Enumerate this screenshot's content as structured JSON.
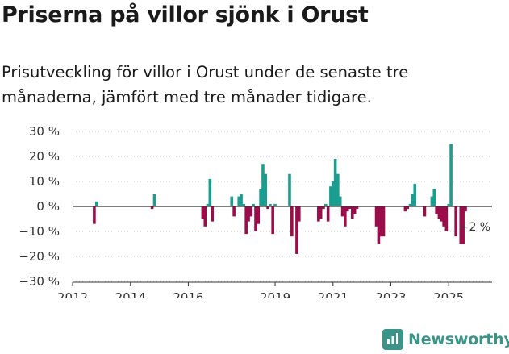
{
  "header": {
    "title": "Priserna på villor sjönk i Orust",
    "subtitle": "Prisutveckling för villor i Orust under de senaste tre månaderna, jämfört med tre månader tidigare."
  },
  "branding": {
    "name": "Newsworthy"
  },
  "colors": {
    "positive": "#1a9e8f",
    "negative": "#9b0d4a",
    "zero_line": "#333333",
    "grid": "#cccccc",
    "text": "#333333"
  },
  "chart_data": {
    "type": "bar",
    "title": "Priserna på villor sjönk i Orust",
    "subtitle": "Prisutveckling för villor i Orust under de senaste tre månaderna, jämfört med tre månader tidigare.",
    "xlabel": "",
    "ylabel": "",
    "x_unit": "decimal year",
    "xlim": [
      2012.0,
      2026.5
    ],
    "ylim": [
      -30,
      30
    ],
    "y_ticks": [
      30,
      20,
      10,
      0,
      -10,
      -20,
      -30
    ],
    "y_tick_labels": [
      "30 %",
      "20 %",
      "10 %",
      "0 %",
      "−10 %",
      "−20 %",
      "−30 %"
    ],
    "x_ticks": [
      2012,
      2014,
      2016,
      2019,
      2021,
      2023,
      2025
    ],
    "x_tick_labels": [
      "2012",
      "2014",
      "2016",
      "2019",
      "2021",
      "2023",
      "2025"
    ],
    "annotation": {
      "x": 2025.6,
      "value": -2,
      "label": "−2 %"
    },
    "x": [
      2012.75,
      2012.83,
      2014.75,
      2014.83,
      2016.5,
      2016.58,
      2016.67,
      2016.75,
      2016.83,
      2017.5,
      2017.58,
      2017.75,
      2017.83,
      2017.92,
      2018.0,
      2018.08,
      2018.17,
      2018.25,
      2018.33,
      2018.42,
      2018.5,
      2018.58,
      2018.67,
      2018.75,
      2018.83,
      2018.92,
      2019.0,
      2019.5,
      2019.58,
      2019.75,
      2019.83,
      2020.5,
      2020.58,
      2020.67,
      2020.75,
      2020.83,
      2020.92,
      2021.0,
      2021.08,
      2021.17,
      2021.25,
      2021.33,
      2021.42,
      2021.5,
      2021.58,
      2021.67,
      2021.75,
      2021.83,
      2022.5,
      2022.58,
      2022.67,
      2022.75,
      2023.5,
      2023.58,
      2023.67,
      2023.75,
      2023.83,
      2024.17,
      2024.42,
      2024.5,
      2024.58,
      2024.67,
      2024.75,
      2024.83,
      2024.92,
      2025.0,
      2025.08,
      2025.25,
      2025.42,
      2025.5,
      2025.58
    ],
    "values": [
      -7,
      2,
      -1,
      5,
      -5,
      -8,
      1,
      11,
      -6,
      4,
      -4,
      4,
      5,
      1,
      -11,
      -6,
      -4,
      1,
      -10,
      -7,
      7,
      17,
      13,
      -1,
      1,
      -11,
      1,
      13,
      -12,
      -19,
      -6,
      -6,
      -5,
      -1,
      1,
      -6,
      8,
      10,
      19,
      13,
      4,
      -4,
      -8,
      -2,
      -1,
      -5,
      -3,
      -1,
      -8,
      -15,
      -12,
      -12,
      -2,
      -1,
      1,
      5,
      9,
      -4,
      4,
      7,
      -3,
      -5,
      -6,
      -8,
      -10,
      1,
      25,
      -12,
      -15,
      -15,
      -2
    ]
  }
}
